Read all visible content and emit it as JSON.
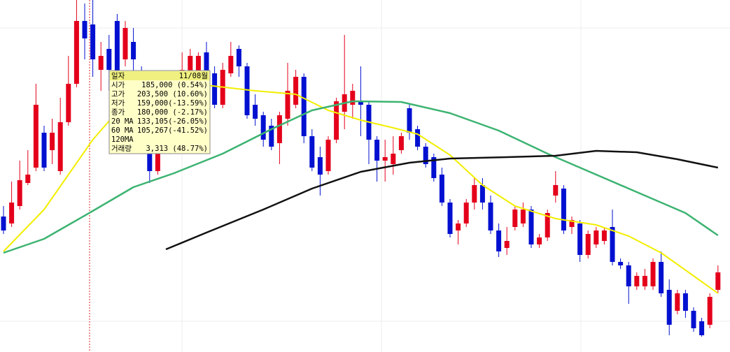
{
  "chart_data": {
    "type": "candlestick",
    "ylim": [
      41800,
      193000
    ],
    "up_color": "#e4001b",
    "down_color": "#0010d0",
    "open": [
      100000,
      97000,
      104500,
      114400,
      121000,
      136000,
      128500,
      119500,
      140500,
      157000,
      184000,
      182500,
      163000,
      172000,
      184000,
      167500,
      175000,
      160000,
      133000,
      119500,
      133000,
      151000,
      154000,
      160000,
      154000,
      170500,
      161500,
      148000,
      161500,
      172000,
      164500,
      148000,
      143500,
      139000,
      131500,
      142000,
      148000,
      160000,
      134500,
      125500,
      119500,
      133000,
      145000,
      148000,
      149500,
      148000,
      133000,
      124000,
      122500,
      128500,
      146500,
      137500,
      130000,
      125500,
      118000,
      106000,
      94000,
      97000,
      106000,
      113500,
      106000,
      94000,
      86500,
      95500,
      97000,
      103000,
      88000,
      91000,
      109000,
      112000,
      95500,
      97000,
      83500,
      88000,
      89500,
      95500,
      80500,
      79000,
      70000,
      70000,
      70000,
      80500,
      68500,
      59500,
      67000,
      59500,
      55000,
      53500,
      68500
    ],
    "high": [
      104500,
      115000,
      124000,
      128500,
      157000,
      139000,
      142000,
      151000,
      169000,
      193000,
      191500,
      193000,
      175000,
      178000,
      187000,
      184000,
      181000,
      164500,
      137500,
      130000,
      148000,
      157000,
      170500,
      172000,
      170500,
      175000,
      164500,
      166000,
      175000,
      173500,
      166000,
      152500,
      145000,
      142000,
      145000,
      166000,
      163000,
      161500,
      137500,
      130000,
      134500,
      151000,
      178000,
      157000,
      164500,
      149500,
      134500,
      133000,
      134500,
      136000,
      148000,
      139000,
      131500,
      127000,
      121000,
      107500,
      98500,
      107500,
      116500,
      116500,
      109000,
      97000,
      95500,
      104500,
      106000,
      104500,
      92500,
      103000,
      119500,
      113500,
      100000,
      98500,
      94000,
      95500,
      95500,
      103000,
      82000,
      80500,
      76000,
      77500,
      82000,
      85000,
      73000,
      68500,
      68500,
      61000,
      56500,
      67000,
      79000
    ],
    "low": [
      92500,
      95500,
      103000,
      113500,
      119500,
      119500,
      122500,
      118000,
      139000,
      155500,
      167500,
      160000,
      154000,
      154000,
      154000,
      164500,
      148000,
      133000,
      114400,
      118000,
      130000,
      136000,
      151000,
      157000,
      151000,
      157000,
      146500,
      146500,
      160000,
      160000,
      142000,
      139000,
      130000,
      128500,
      122500,
      139000,
      146500,
      131500,
      119500,
      109000,
      118000,
      131500,
      137500,
      142000,
      134500,
      122500,
      115000,
      115000,
      118000,
      127000,
      133000,
      128500,
      121000,
      115000,
      104500,
      91000,
      88000,
      95500,
      103000,
      103000,
      92500,
      82600,
      83500,
      94000,
      95500,
      86500,
      86500,
      89500,
      106000,
      92500,
      92500,
      80500,
      82000,
      86500,
      88000,
      79000,
      77500,
      62500,
      68500,
      68500,
      68500,
      65500,
      49000,
      58000,
      56500,
      50500,
      48400,
      52000,
      67000
    ],
    "close": [
      94000,
      106000,
      115600,
      118000,
      148000,
      121000,
      136000,
      140500,
      157000,
      184000,
      176500,
      167500,
      169000,
      163000,
      158500,
      181000,
      167500,
      145000,
      119500,
      127000,
      142000,
      140500,
      163000,
      169000,
      169000,
      160000,
      148000,
      163000,
      169000,
      164500,
      143500,
      142000,
      133000,
      130000,
      143500,
      154000,
      160000,
      134500,
      121000,
      118000,
      133000,
      149500,
      152500,
      154000,
      148000,
      133000,
      124000,
      125500,
      127000,
      134500,
      136000,
      130000,
      122500,
      116500,
      106000,
      92500,
      97000,
      106000,
      113500,
      106000,
      94000,
      85000,
      89500,
      103000,
      103000,
      88000,
      91000,
      101500,
      113500,
      94000,
      98500,
      83500,
      92500,
      94000,
      94000,
      80500,
      79000,
      70000,
      74500,
      74500,
      80500,
      67000,
      53500,
      67000,
      59500,
      52000,
      49000,
      65500,
      76000
    ],
    "series": [
      {
        "name": "20 MA",
        "color": "#f2ee00",
        "x": [
          0,
          5,
          11,
          14,
          20,
          25,
          31,
          36,
          40,
          44,
          48,
          51,
          55,
          59,
          63,
          68,
          73,
          77,
          81,
          85,
          88
        ],
        "values": [
          85000,
          103000,
          133000,
          145000,
          157000,
          156400,
          154000,
          152500,
          145600,
          141400,
          138100,
          135400,
          126400,
          113500,
          104500,
          99100,
          96400,
          91600,
          84400,
          74500,
          67000
        ]
      },
      {
        "name": "60 MA",
        "color": "#3cb371",
        "x": [
          0,
          5,
          11,
          16,
          21,
          27,
          33,
          38,
          43,
          49,
          55,
          61,
          67,
          72,
          78,
          84,
          88
        ],
        "values": [
          84400,
          90400,
          102400,
          112600,
          118600,
          127000,
          137500,
          145600,
          149500,
          149200,
          144400,
          136900,
          127000,
          119500,
          110500,
          101500,
          91900
        ]
      },
      {
        "name": "120MA",
        "color": "#111111",
        "x": [
          20,
          25,
          32,
          38,
          44,
          50,
          55,
          62,
          68,
          73,
          78,
          83,
          88
        ],
        "values": [
          85900,
          93100,
          103000,
          112000,
          119200,
          123100,
          124900,
          125500,
          126100,
          128200,
          127600,
          124600,
          121000
        ]
      }
    ],
    "tooltip": {
      "rows": [
        {
          "label": "일자",
          "value": "11/08월"
        },
        {
          "label": "시가",
          "value": "185,000  (0.54%)"
        },
        {
          "label": "고가",
          "value": "203,500 (10.60%)"
        },
        {
          "label": "저가",
          "value": "159,000(-13.59%)"
        },
        {
          "label": "종가",
          "value": "180,000 (-2.17%)"
        }
      ],
      "ma_values": [
        "133,105(-26.05%)",
        "105,267(-41.52%)"
      ],
      "volume": {
        "label": "거래량",
        "value": "3,313 (48.77%)"
      }
    }
  }
}
